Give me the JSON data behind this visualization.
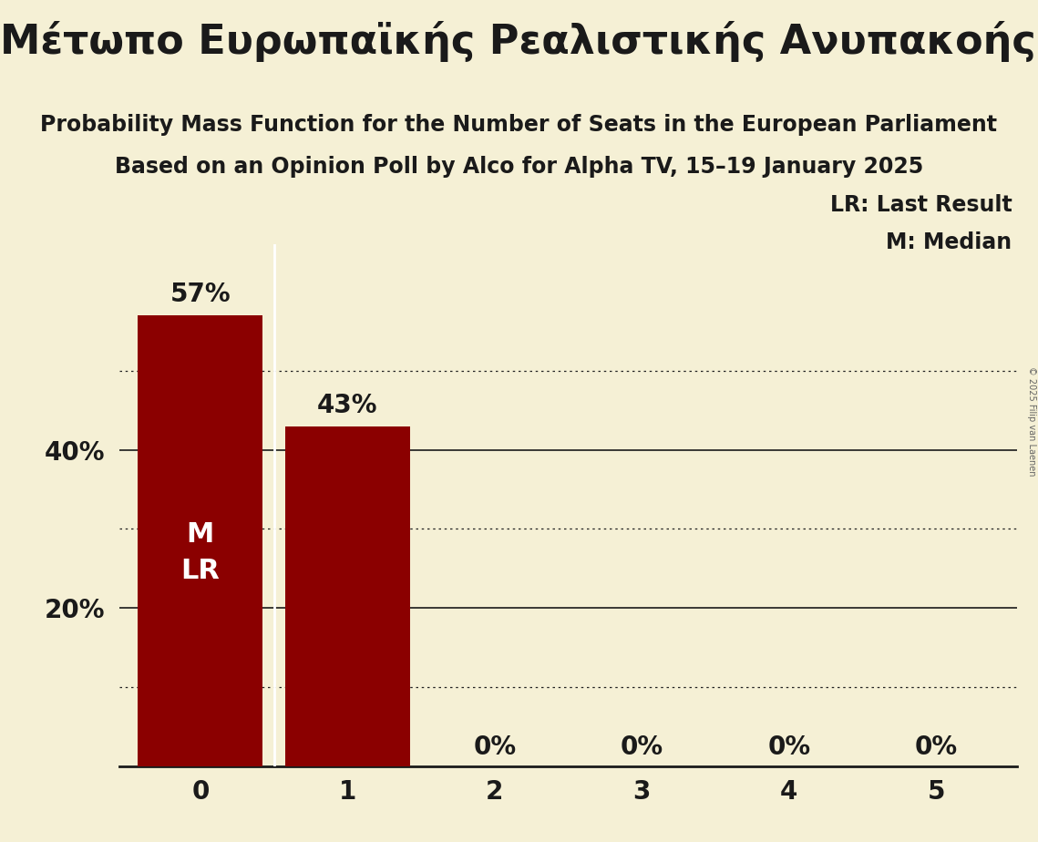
{
  "title_greek": "Μέτωπο Ευρωπαϊκής Ρεαλιστικής Ανυπακοής (GUE/NG",
  "subtitle1": "Probability Mass Function for the Number of Seats in the European Parliament",
  "subtitle2": "Based on an Opinion Poll by Alco for Alpha TV, 15–19 January 2025",
  "copyright": "© 2025 Filip van Laenen",
  "categories": [
    0,
    1,
    2,
    3,
    4,
    5
  ],
  "values": [
    0.57,
    0.43,
    0.0,
    0.0,
    0.0,
    0.0
  ],
  "bar_color": "#8B0000",
  "bar_labels": [
    "57%",
    "43%",
    "0%",
    "0%",
    "0%",
    "0%"
  ],
  "median_bar": 0,
  "legend_lr": "LR: Last Result",
  "legend_m": "M: Median",
  "ytick_positions": [
    0.0,
    0.2,
    0.4
  ],
  "ytick_labels": [
    "",
    "20%",
    "40%"
  ],
  "background_color": "#f5f0d5",
  "axis_text_color": "#1a1a1a",
  "solid_grid_lines": [
    0.2,
    0.4
  ],
  "dotted_grid_lines": [
    0.1,
    0.3,
    0.5
  ],
  "title_fontsize": 32,
  "subtitle1_fontsize": 17,
  "subtitle2_fontsize": 17,
  "axis_label_fontsize": 20,
  "bar_label_fontsize": 20,
  "bar_annotation_fontsize": 22,
  "legend_fontsize": 17
}
